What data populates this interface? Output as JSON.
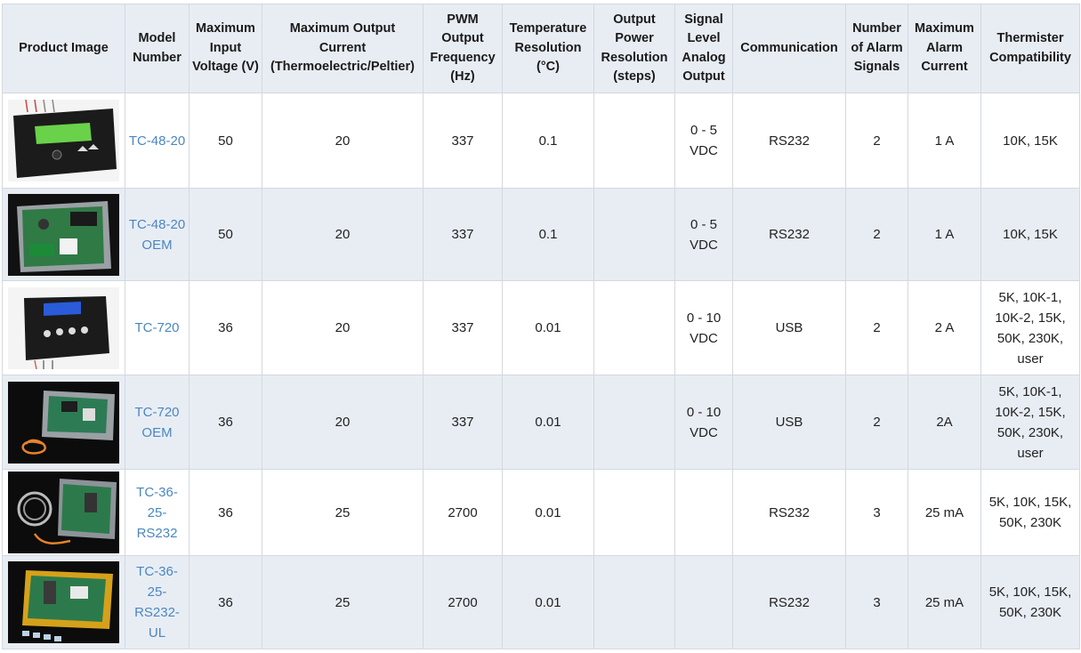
{
  "columns": [
    "Product Image",
    "Model Number",
    "Maximum Input Voltage (V)",
    "Maximum Output Current (Thermoelectric/Peltier)",
    "PWM Output Frequency (Hz)",
    "Temperature Resolution (°C)",
    "Output Power Resolution (steps)",
    "Signal Level Analog Output",
    "Communication",
    "Number of Alarm Signals",
    "Maximum Alarm Current",
    "Thermister Compatibility"
  ],
  "rows": [
    {
      "image": "tc-48-20-enclosed-controller-photo",
      "model": "TC-48-20",
      "voltage": "50",
      "current": "20",
      "pwm": "337",
      "temp_res": "0.1",
      "power_res": "",
      "analog": "0 - 5 VDC",
      "comm": "RS232",
      "alarms": "2",
      "alarm_current": "1 A",
      "thermistor": "10K, 15K"
    },
    {
      "image": "tc-48-20-oem-board-photo",
      "model": "TC-48-20 OEM",
      "voltage": "50",
      "current": "20",
      "pwm": "337",
      "temp_res": "0.1",
      "power_res": "",
      "analog": "0 - 5 VDC",
      "comm": "RS232",
      "alarms": "2",
      "alarm_current": "1 A",
      "thermistor": "10K, 15K"
    },
    {
      "image": "tc-720-enclosed-controller-photo",
      "model": "TC-720",
      "voltage": "36",
      "current": "20",
      "pwm": "337",
      "temp_res": "0.01",
      "power_res": "",
      "analog": "0 - 10 VDC",
      "comm": "USB",
      "alarms": "2",
      "alarm_current": "2 A",
      "thermistor": "5K, 10K-1, 10K-2, 15K, 50K, 230K, user"
    },
    {
      "image": "tc-720-oem-board-photo",
      "model": "TC-720 OEM",
      "voltage": "36",
      "current": "20",
      "pwm": "337",
      "temp_res": "0.01",
      "power_res": "",
      "analog": "0 - 10 VDC",
      "comm": "USB",
      "alarms": "2",
      "alarm_current": "2A",
      "thermistor": "5K, 10K-1, 10K-2, 15K, 50K, 230K, user"
    },
    {
      "image": "tc-36-25-rs232-board-photo",
      "model": "TC-36-25-RS232",
      "voltage": "36",
      "current": "25",
      "pwm": "2700",
      "temp_res": "0.01",
      "power_res": "",
      "analog": "",
      "comm": "RS232",
      "alarms": "3",
      "alarm_current": "25 mA",
      "thermistor": "5K, 10K, 15K, 50K, 230K"
    },
    {
      "image": "tc-36-25-rs232-ul-board-photo",
      "model": "TC-36-25-RS232-UL",
      "voltage": "36",
      "current": "25",
      "pwm": "2700",
      "temp_res": "0.01",
      "power_res": "",
      "analog": "",
      "comm": "RS232",
      "alarms": "3",
      "alarm_current": "25 mA",
      "thermistor": "5K, 10K, 15K, 50K, 230K"
    }
  ]
}
